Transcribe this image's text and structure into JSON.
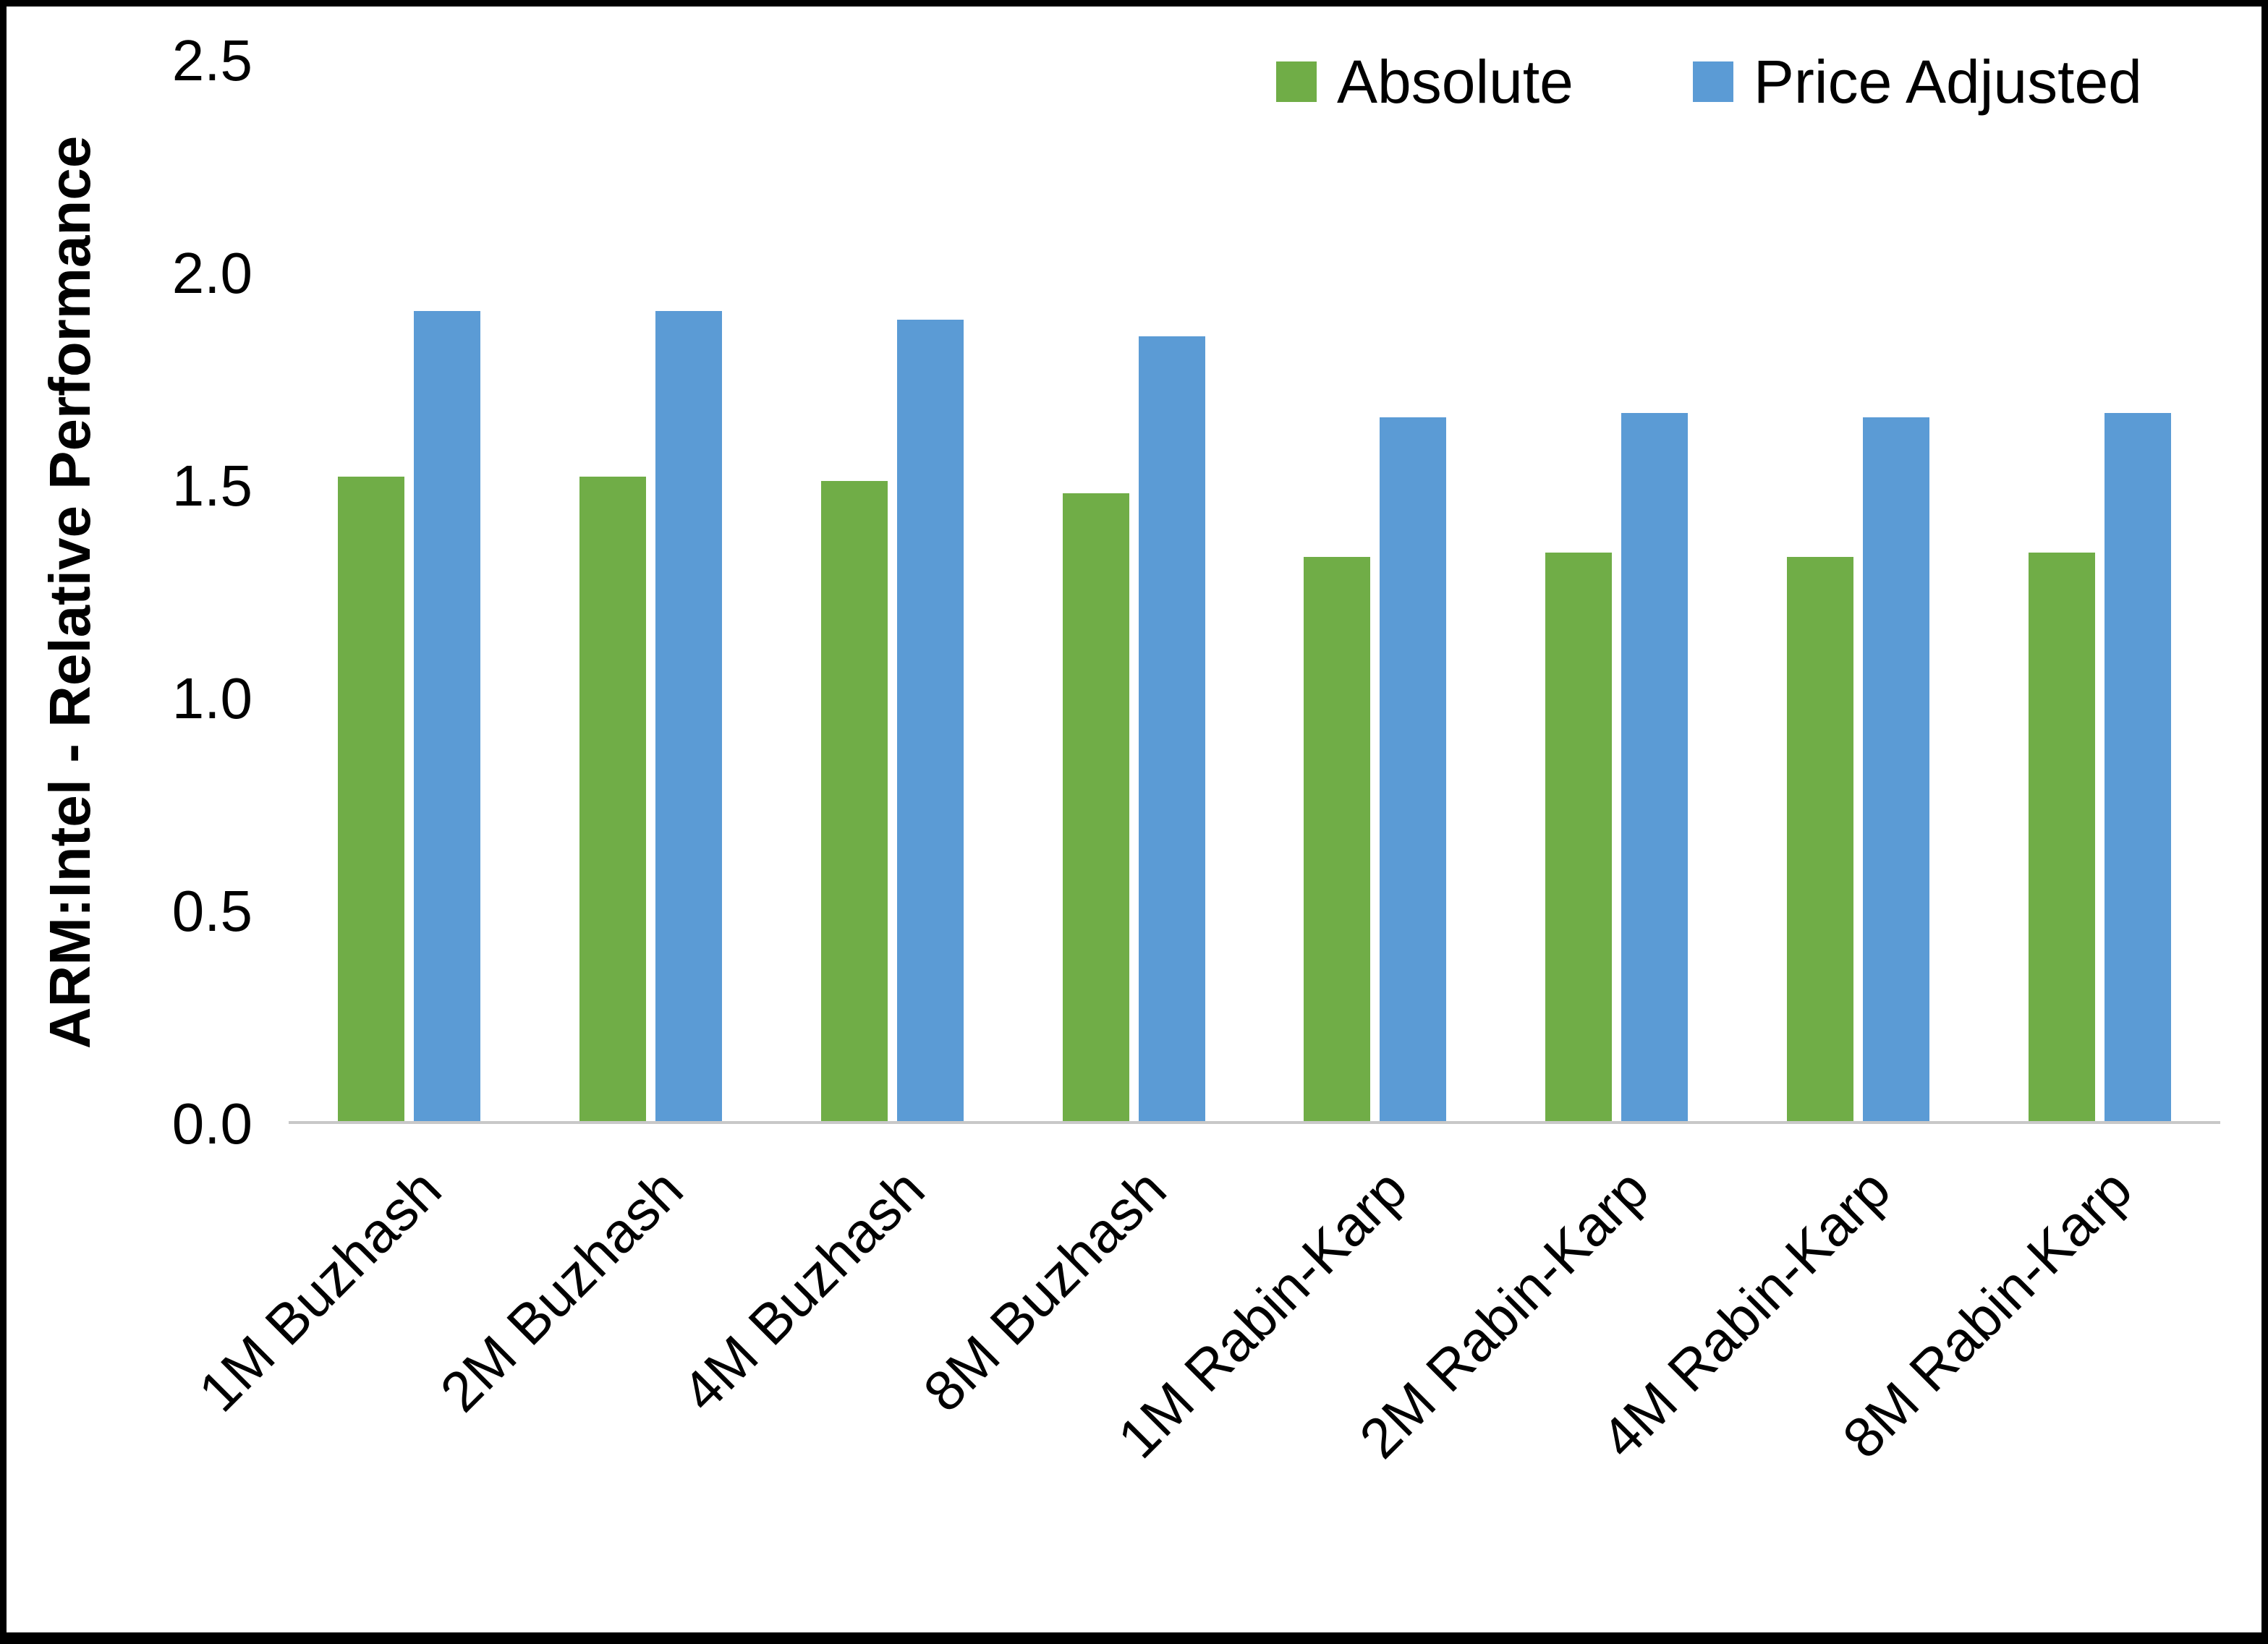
{
  "chart_data": {
    "type": "bar",
    "title": "",
    "categories": [
      "1M Buzhash",
      "2M Buzhash",
      "4M Buzhash",
      "8M Buzhash",
      "1M Rabin-Karp",
      "2M Rabin-Karp",
      "4M Rabin-Karp",
      "8M Rabin-Karp"
    ],
    "series": [
      {
        "name": "Absolute",
        "color": "#70AD47",
        "values": [
          1.52,
          1.52,
          1.51,
          1.48,
          1.33,
          1.34,
          1.33,
          1.34
        ]
      },
      {
        "name": "Price Adjusted",
        "color": "#5B9BD5",
        "values": [
          1.91,
          1.91,
          1.89,
          1.85,
          1.66,
          1.67,
          1.66,
          1.67
        ]
      }
    ],
    "xlabel": "",
    "ylabel": "ARM:Intel - Relative Performance",
    "ylim": [
      0,
      2.5
    ],
    "yticks": [
      0.0,
      0.5,
      1.0,
      1.5,
      2.0,
      2.5
    ],
    "ytick_labels": [
      "0.0",
      "0.5",
      "1.0",
      "1.5",
      "2.0",
      "2.5"
    ],
    "legend_position": "top-right",
    "grid": false,
    "axis_line_color": "#c8c8c8"
  }
}
